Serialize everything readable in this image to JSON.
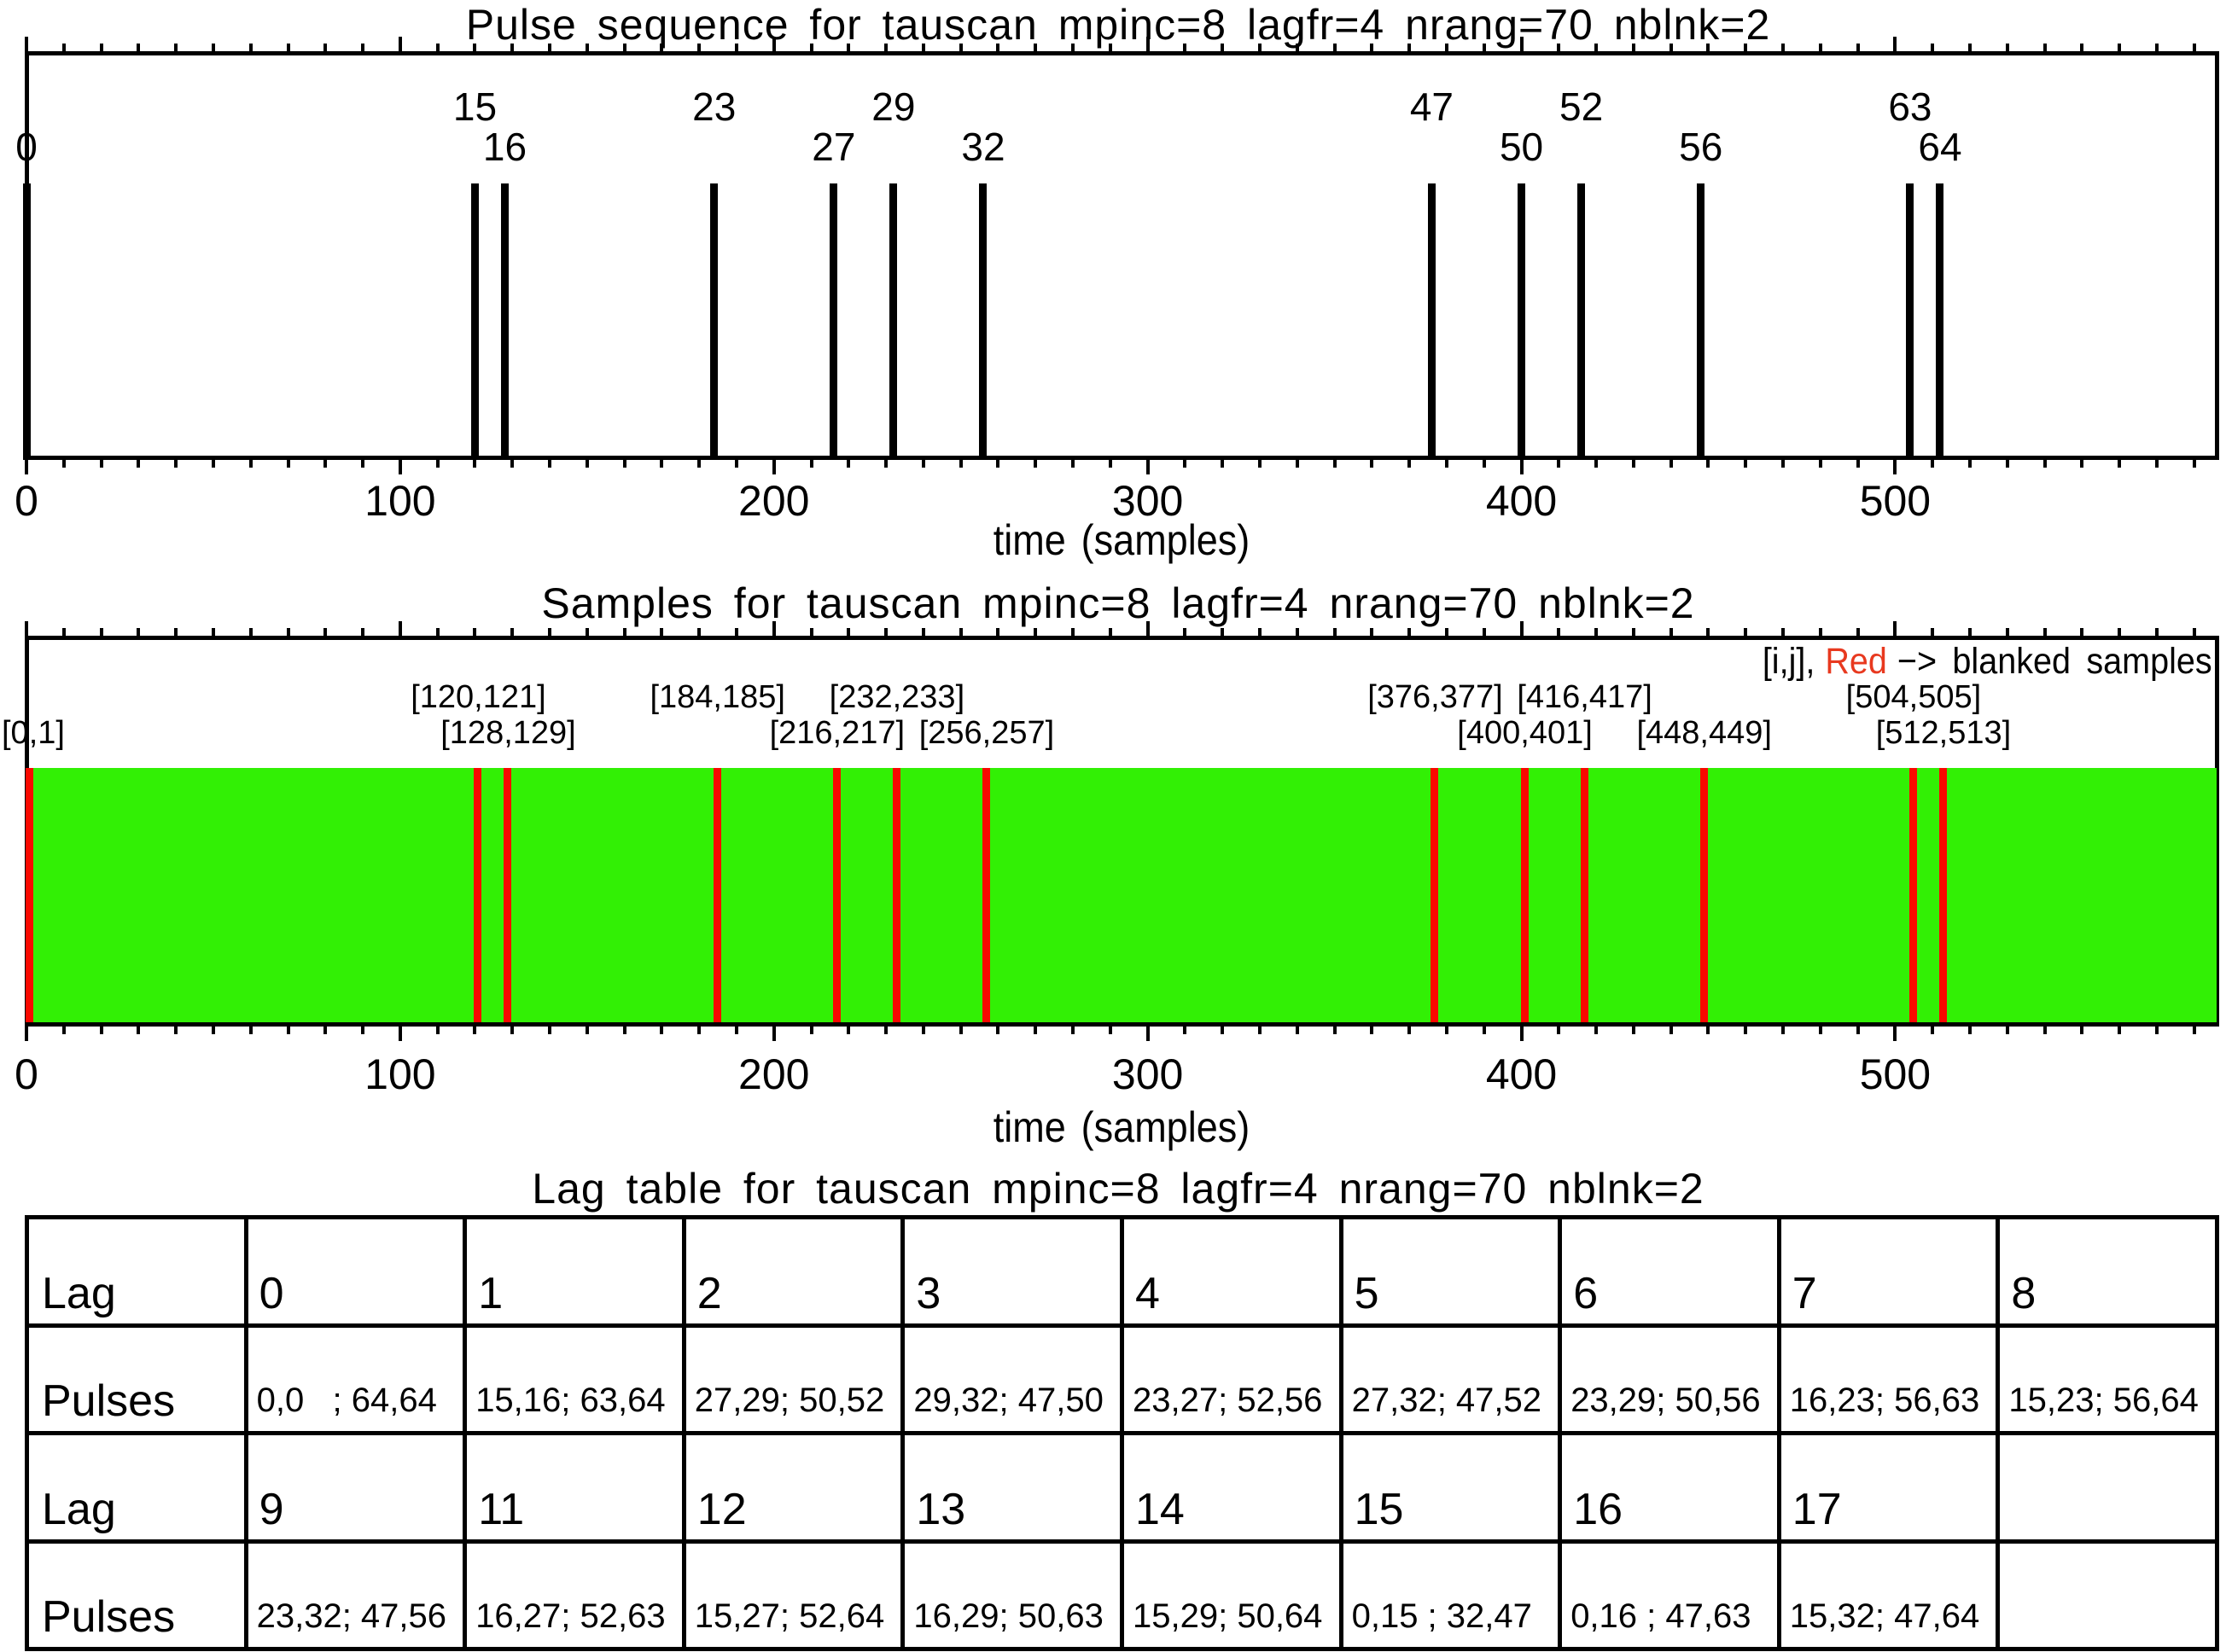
{
  "page": {
    "background": "#FFFFFF",
    "axis_color": "#000000"
  },
  "chart_data": [
    {
      "type": "bar",
      "subtype": "pulse-sequence",
      "title": "Pulse sequence for tauscan mpinc=8 lagfr=4 nrang=70 nblnk=2",
      "xlabel": "time (samples)",
      "xlim": [
        0,
        586
      ],
      "xticks_major": [
        0,
        100,
        200,
        300,
        400,
        500
      ],
      "xtick_minor_step": 10,
      "grid": false,
      "pulse_numbers": [
        "0",
        "15",
        "16",
        "23",
        "27",
        "29",
        "32",
        "47",
        "50",
        "52",
        "56",
        "63",
        "64"
      ],
      "pulse_times": [
        0,
        120,
        128,
        184,
        216,
        232,
        256,
        376,
        400,
        416,
        448,
        504,
        512
      ],
      "label_rows": [
        2,
        1,
        2,
        1,
        2,
        1,
        2,
        1,
        2,
        1,
        2,
        1,
        2
      ]
    },
    {
      "type": "bar",
      "subtype": "sample-band",
      "title": "Samples for tauscan mpinc=8 lagfr=4 nrang=70 nblnk=2",
      "xlabel": "time (samples)",
      "xlim": [
        0,
        586
      ],
      "xticks_major": [
        0,
        100,
        200,
        300,
        400,
        500
      ],
      "xtick_minor_step": 10,
      "band_color": "#32F005",
      "blank_color": "#F90800",
      "legend": {
        "prefix": "[i,j],",
        "highlight": "Red",
        "highlight_color": "#E8391F",
        "suffix": "−> blanked samples"
      },
      "blanked_pairs": [
        [
          0,
          1
        ],
        [
          120,
          121
        ],
        [
          128,
          129
        ],
        [
          184,
          185
        ],
        [
          216,
          217
        ],
        [
          232,
          233
        ],
        [
          256,
          257
        ],
        [
          376,
          377
        ],
        [
          400,
          401
        ],
        [
          416,
          417
        ],
        [
          448,
          449
        ],
        [
          504,
          505
        ],
        [
          512,
          513
        ]
      ],
      "pair_labels": [
        "[0,1]",
        "[120,121]",
        "[128,129]",
        "[184,185]",
        "[216,217]",
        "[232,233]",
        "[256,257]",
        "[376,377]",
        "[400,401]",
        "[416,417]",
        "[448,449]",
        "[504,505]",
        "[512,513]"
      ],
      "label_rows": [
        2,
        1,
        2,
        1,
        2,
        1,
        2,
        1,
        2,
        1,
        2,
        1,
        2
      ]
    },
    {
      "type": "table",
      "title": "Lag table for tauscan mpinc=8 lagfr=4 nrang=70 nblnk=2",
      "rows": [
        {
          "header": "Lag",
          "cells": [
            "0",
            "1",
            "2",
            "3",
            "4",
            "5",
            "6",
            "7",
            "8"
          ]
        },
        {
          "header": "Pulses",
          "cells": [
            "0,0   ; 64,64",
            "15,16; 63,64",
            "27,29; 50,52",
            "29,32; 47,50",
            "23,27; 52,56",
            "27,32; 47,52",
            "23,29; 50,56",
            "16,23; 56,63",
            "15,23; 56,64"
          ]
        },
        {
          "header": "Lag",
          "cells": [
            "9",
            "11",
            "12",
            "13",
            "14",
            "15",
            "16",
            "17",
            ""
          ]
        },
        {
          "header": "Pulses",
          "cells": [
            "23,32; 47,56",
            "16,27; 52,63",
            "15,27; 52,64",
            "16,29; 50,63",
            "15,29; 50,64",
            "0,15 ; 32,47",
            "0,16 ; 47,63",
            "15,32; 47,64",
            ""
          ]
        }
      ]
    }
  ]
}
